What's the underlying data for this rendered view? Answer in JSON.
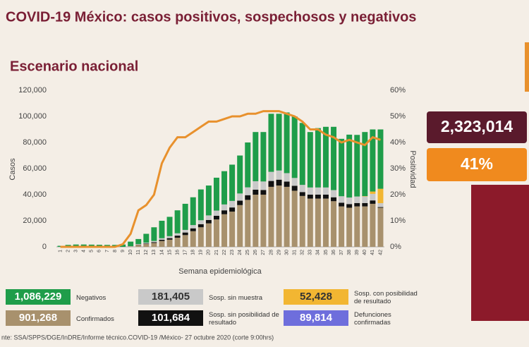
{
  "chart_data": {
    "type": "bar",
    "title": "COVID-19 México: casos positivos, sospechosos y negativos",
    "subtitle": "Escenario nacional",
    "ylabel": "Casos",
    "y2label": "Positividad",
    "xlabel": "Semana epidemiológica",
    "stacked": true,
    "categories": [
      "1",
      "2",
      "3",
      "4",
      "5",
      "6",
      "7",
      "8",
      "9",
      "10",
      "11",
      "12",
      "13",
      "14",
      "15",
      "16",
      "17",
      "18",
      "19",
      "20",
      "21",
      "22",
      "23",
      "24",
      "25",
      "26",
      "27",
      "28",
      "29",
      "30",
      "31",
      "32",
      "33",
      "34",
      "35",
      "36",
      "37",
      "38",
      "39",
      "40",
      "41",
      "42"
    ],
    "series": [
      {
        "name": "Confirmados",
        "total": "901,268",
        "color": "#a8916d",
        "values": [
          0,
          0,
          0,
          0,
          0,
          0,
          0,
          0,
          0,
          300,
          1500,
          2200,
          3000,
          4500,
          5500,
          7000,
          9000,
          12000,
          15000,
          18000,
          21000,
          25000,
          27000,
          32000,
          36000,
          40000,
          40000,
          46000,
          47000,
          46000,
          43000,
          39000,
          37000,
          37000,
          37000,
          35000,
          31000,
          30000,
          31000,
          31000,
          33000,
          30000
        ]
      },
      {
        "name": "Sosp. sin posibilidad de resultado",
        "total": "101,684",
        "color": "#111111",
        "values": [
          0,
          0,
          0,
          0,
          0,
          0,
          0,
          0,
          0,
          0,
          200,
          400,
          600,
          900,
          1200,
          1600,
          2000,
          2200,
          2400,
          2600,
          2800,
          3000,
          3200,
          3400,
          3600,
          3800,
          3600,
          4500,
          4500,
          4000,
          3800,
          3000,
          3000,
          3000,
          3000,
          3000,
          2800,
          2800,
          2600,
          2600,
          2600,
          500
        ]
      },
      {
        "name": "Sosp. sin muestra",
        "total": "181,405",
        "color": "#c9c9c9",
        "values": [
          0,
          0,
          0,
          0,
          0,
          0,
          0,
          0,
          0,
          200,
          400,
          600,
          900,
          1200,
          1500,
          1800,
          2000,
          2500,
          3000,
          3500,
          4000,
          4500,
          5000,
          5500,
          6000,
          6500,
          6500,
          7000,
          7000,
          6500,
          6000,
          5500,
          5500,
          5500,
          5500,
          5500,
          5000,
          5000,
          5000,
          5000,
          5000,
          3000
        ]
      },
      {
        "name": "Sosp. con posibilidad de resultado",
        "total": "52,428",
        "color": "#f2b632",
        "values": [
          0,
          0,
          0,
          0,
          0,
          0,
          0,
          0,
          0,
          0,
          0,
          0,
          0,
          0,
          0,
          0,
          0,
          0,
          0,
          0,
          0,
          0,
          0,
          0,
          0,
          0,
          0,
          0,
          0,
          0,
          0,
          0,
          0,
          0,
          0,
          0,
          0,
          0,
          0,
          300,
          1800,
          11000
        ]
      },
      {
        "name": "Negativos",
        "total": "1,086,229",
        "color": "#1f9d4a",
        "values": [
          800,
          1500,
          1800,
          1800,
          1700,
          1600,
          1500,
          1500,
          1800,
          3500,
          3900,
          6800,
          10500,
          13400,
          14800,
          17600,
          20000,
          21300,
          23600,
          22900,
          25200,
          25500,
          27800,
          29100,
          34400,
          37700,
          37900,
          44500,
          43500,
          46500,
          47200,
          47500,
          42500,
          45500,
          46500,
          48500,
          44000,
          48200,
          47200,
          49100,
          47600,
          45500
        ]
      },
      {
        "type": "line",
        "axis": "y2",
        "color": "#e8912d",
        "values": [
          0,
          0,
          0,
          0,
          0,
          0,
          0,
          0,
          1,
          5,
          14,
          16,
          20,
          32,
          38,
          42,
          42,
          44,
          46,
          48,
          48,
          49,
          50,
          50,
          51,
          51,
          52,
          52,
          52,
          51,
          50,
          48,
          45,
          45,
          43,
          42,
          40,
          41,
          40,
          39,
          42,
          41
        ]
      }
    ],
    "extra_legend": {
      "name": "Defunciones confirmadas",
      "total": "89,814",
      "color": "#6e6edc"
    },
    "ylim": [
      0,
      120000
    ],
    "yticks": [
      {
        "value": 0,
        "label": "0"
      },
      {
        "value": 20000,
        "label": "20,000"
      },
      {
        "value": 40000,
        "label": "40,000"
      },
      {
        "value": 60000,
        "label": "60,000"
      },
      {
        "value": 80000,
        "label": "80,000"
      },
      {
        "value": 100000,
        "label": "100,000"
      },
      {
        "value": 120000,
        "label": "120,000"
      }
    ],
    "y2lim": [
      0,
      60
    ],
    "y2ticks": [
      {
        "value": 0,
        "label": "0%"
      },
      {
        "value": 10,
        "label": "10%"
      },
      {
        "value": 20,
        "label": "20%"
      },
      {
        "value": 30,
        "label": "30%"
      },
      {
        "value": 40,
        "label": "40%"
      },
      {
        "value": 50,
        "label": "50%"
      },
      {
        "value": 60,
        "label": "60%"
      }
    ],
    "grid": false
  },
  "panel": {
    "total": "2,323,014",
    "positivity": "41%"
  },
  "source": "nte: SSA/SPPS/DGE/InDRE/Informe técnico.COVID-19 /México- 27 octubre 2020 (corte 9:00hrs)"
}
